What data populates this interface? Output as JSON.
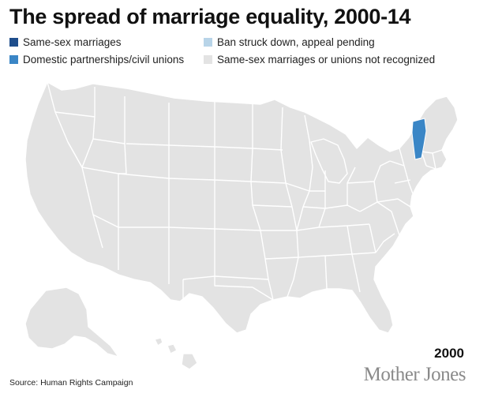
{
  "title": "The spread of marriage equality, 2000-14",
  "legend": [
    {
      "label": "Same-sex marriages",
      "color": "#1f4e8c"
    },
    {
      "label": "Ban struck down, appeal pending",
      "color": "#b8d4e8"
    },
    {
      "label": "Domestic partnerships/civil unions",
      "color": "#3a86c6"
    },
    {
      "label": "Same-sex marriages or unions not recognized",
      "color": "#e3e3e3"
    }
  ],
  "map": {
    "base_color": "#e3e3e3",
    "border_color": "#ffffff",
    "highlighted_states": [
      {
        "state": "Vermont",
        "status": "Domestic partnerships/civil unions",
        "color": "#3a86c6"
      }
    ]
  },
  "year": "2000",
  "source": "Source: Human Rights Campaign",
  "brand": "Mother Jones"
}
